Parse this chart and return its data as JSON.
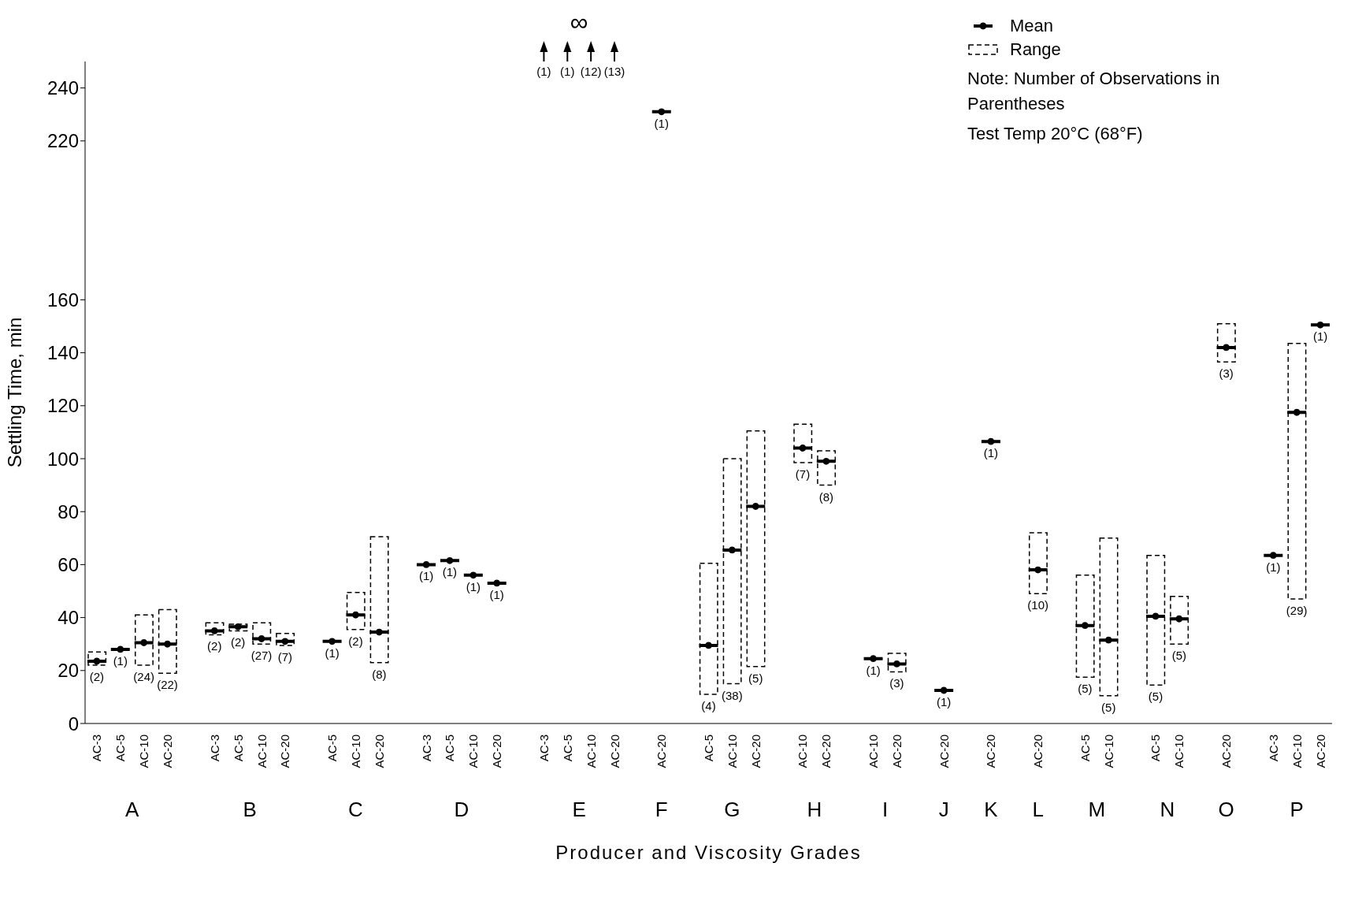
{
  "chart_data": {
    "type": "scatter",
    "xlabel": "Producer and Viscosity Grades",
    "ylabel": "Settling Time, min",
    "categories": [
      "AC-3",
      "AC-5",
      "AC-10",
      "AC-20",
      null,
      "AC-3",
      "AC-5",
      "AC-10",
      "AC-20",
      null,
      "AC-5",
      "AC-10",
      "AC-20",
      null,
      "AC-3",
      "AC-5",
      "AC-10",
      "AC-20",
      null,
      "AC-3",
      "AC-5",
      "AC-10",
      "AC-20",
      null,
      "AC-20",
      null,
      "AC-5",
      "AC-10",
      "AC-20",
      null,
      "AC-10",
      "AC-20",
      null,
      "AC-10",
      "AC-20",
      null,
      "AC-20",
      null,
      "AC-20",
      null,
      "AC-20",
      null,
      "AC-5",
      "AC-10",
      null,
      "AC-5",
      "AC-10",
      null,
      "AC-20",
      null,
      "AC-3",
      "AC-10",
      "AC-20"
    ],
    "series": [
      {
        "name": "Mean",
        "color": "#000000",
        "values": [
          23.5,
          28,
          30.5,
          30,
          null,
          35,
          36.5,
          32,
          31,
          null,
          31,
          41,
          34.5,
          null,
          60,
          61.5,
          56,
          53,
          null,
          null,
          null,
          null,
          null,
          null,
          231,
          null,
          29.5,
          65.5,
          82,
          null,
          104,
          99,
          null,
          24.5,
          22.5,
          null,
          12.5,
          null,
          106.5,
          null,
          58,
          null,
          37,
          31.5,
          null,
          40.5,
          39.5,
          null,
          142,
          null,
          63.5,
          117.5,
          150.5
        ]
      },
      {
        "name": "Range",
        "type": "bar",
        "color": "#000000",
        "line_style": "dashed",
        "base": [
          22,
          null,
          22,
          19,
          null,
          33.5,
          35,
          30,
          29.5,
          null,
          null,
          35.5,
          23,
          null,
          null,
          null,
          null,
          null,
          null,
          null,
          null,
          null,
          null,
          null,
          null,
          null,
          11,
          15,
          21.5,
          null,
          98.5,
          90,
          null,
          null,
          19.5,
          null,
          null,
          null,
          null,
          null,
          49,
          null,
          17.5,
          10.5,
          null,
          14.5,
          30,
          null,
          136.5,
          null,
          null,
          47,
          null
        ],
        "values": [
          5,
          null,
          19,
          24,
          null,
          4.5,
          2.5,
          8,
          4.5,
          null,
          null,
          14,
          47.5,
          null,
          null,
          null,
          null,
          null,
          null,
          null,
          null,
          null,
          null,
          null,
          null,
          null,
          49.5,
          85,
          89,
          null,
          14.5,
          13,
          null,
          null,
          7,
          null,
          null,
          null,
          null,
          null,
          23,
          null,
          38.5,
          59.5,
          null,
          49,
          18,
          null,
          14.5,
          null,
          null,
          96.5,
          null
        ]
      }
    ],
    "ylim": [
      0,
      250
    ],
    "yticks": [
      0,
      20,
      40,
      60,
      80,
      100,
      120,
      140,
      160,
      220,
      240
    ],
    "legend": "top right",
    "annotations": [
      "A",
      "B",
      "C",
      "D",
      "E",
      "F",
      "G",
      "H",
      "I",
      "J",
      "K",
      "L",
      "M",
      "N",
      "O",
      "P",
      "∞",
      "Note: Number of Observations in Parentheses",
      "Test Temp 20°C (68°F)",
      "(2)",
      "(1)",
      "(24)",
      "(22)",
      "(2)",
      "(2)",
      "(27)",
      "(7)",
      "(1)",
      "(2)",
      "(8)",
      "(1)",
      "(1)",
      "(1)",
      "(1)",
      "(1)",
      "(1)",
      "(12)",
      "(13)",
      "(1)",
      "(4)",
      "(38)",
      "(5)",
      "(7)",
      "(8)",
      "(1)",
      "(3)",
      "(1)",
      "(1)",
      "(10)",
      "(5)",
      "(5)",
      "(5)",
      "(5)",
      "(3)",
      "(1)",
      "(29)",
      "(1)"
    ]
  }
}
